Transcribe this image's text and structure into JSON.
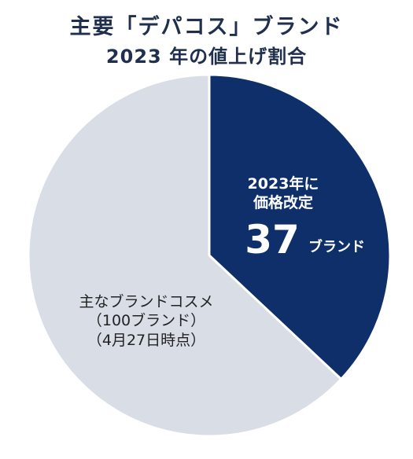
{
  "chart_data": {
    "type": "pie",
    "title": [
      "主要「デパコス」ブランド",
      "2023 年の値上げ割合"
    ],
    "slices": [
      {
        "label_lines": [
          "2023年に",
          "価格改定"
        ],
        "value": 37,
        "value_text": "37",
        "unit": "ブランド",
        "color": "#0e2f69"
      },
      {
        "label_lines": [
          "主なブランドコスメ",
          "（100ブランド）",
          "（4月27日時点）"
        ],
        "value": 63,
        "color": "#d8dde6"
      }
    ]
  },
  "colors": {
    "title": "#1f2f4d",
    "slice_text_dark_bg": "#ffffff",
    "slice_text_light_bg": "#222222"
  }
}
